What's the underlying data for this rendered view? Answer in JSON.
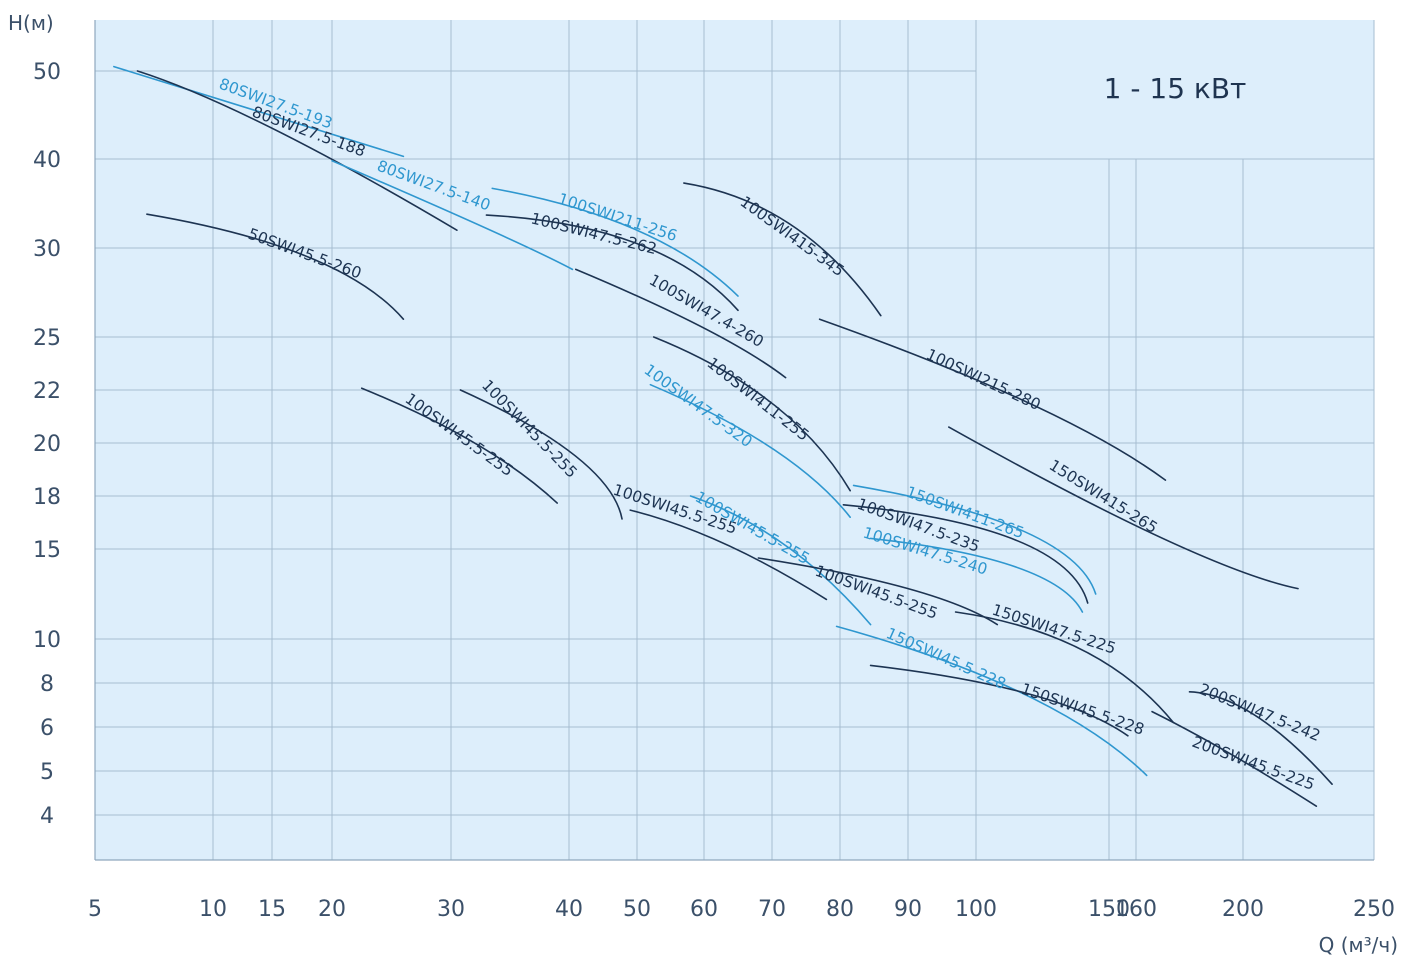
{
  "chart_data": {
    "type": "line",
    "title": "1 - 15 кВт",
    "ylabel": "H(м)",
    "xlabel": "Q (м³/ч)",
    "grid": true,
    "x_ticks": [
      "5",
      "10",
      "15",
      "20",
      "30",
      "40",
      "50",
      "60",
      "70",
      "80",
      "90",
      "100",
      "150",
      "160",
      "200",
      "250"
    ],
    "y_ticks": [
      "50",
      "40",
      "30",
      "25",
      "22",
      "20",
      "18",
      "15",
      "10",
      "8",
      "6",
      "5",
      "4"
    ],
    "colors": {
      "background": "#ddeefb",
      "grid": "#a6bdd0",
      "dark_curve": "#1d3452",
      "light_curve": "#2f97cf",
      "text": "#3b5069"
    },
    "series": [
      {
        "name": "80SWI27.5-193",
        "color": "light",
        "x": [
          5.8,
          26
        ],
        "y": [
          50.5,
          40.3
        ]
      },
      {
        "name": "80SWI27.5-188",
        "color": "dark",
        "x": [
          6.8,
          15,
          30.5
        ],
        "y": [
          50,
          43.5,
          32
        ]
      },
      {
        "name": "80SWI27.5-140",
        "color": "light",
        "x": [
          20,
          33,
          40.5
        ],
        "y": [
          39.8,
          32.2,
          28.8
        ]
      },
      {
        "name": "50SWI45.5-260",
        "color": "dark",
        "x": [
          7.2,
          18,
          26
        ],
        "y": [
          33.8,
          29.5,
          26
        ]
      },
      {
        "name": "100SWI211-256",
        "color": "light",
        "x": [
          33.5,
          50,
          65
        ],
        "y": [
          36.7,
          32,
          27.3
        ]
      },
      {
        "name": "100SWI47.5-262",
        "color": "dark",
        "x": [
          33,
          50,
          65
        ],
        "y": [
          33.7,
          30.5,
          26.5
        ]
      },
      {
        "name": "100SWI415-345",
        "color": "dark",
        "x": [
          57,
          73,
          86
        ],
        "y": [
          37.3,
          32.5,
          26.2
        ]
      },
      {
        "name": "100SWI47.4-260",
        "color": "dark",
        "x": [
          41,
          60,
          72
        ],
        "y": [
          28.8,
          25.5,
          22.7
        ]
      },
      {
        "name": "100SWI215-280",
        "color": "dark",
        "x": [
          77,
          120,
          171
        ],
        "y": [
          26,
          21.5,
          18.6
        ]
      },
      {
        "name": "100SWI411-255",
        "color": "dark",
        "x": [
          52.5,
          70,
          81.5
        ],
        "y": [
          25,
          21.5,
          18.2
        ]
      },
      {
        "name": "100SWI47.5-320",
        "color": "light",
        "x": [
          52,
          70,
          81.5
        ],
        "y": [
          22.3,
          19.8,
          16.8
        ]
      },
      {
        "name": "150SWI415-265",
        "color": "dark",
        "x": [
          96,
          170,
          221
        ],
        "y": [
          20.6,
          15.6,
          12.8
        ]
      },
      {
        "name": "100SWI45.5-255",
        "color": "dark",
        "x": [
          22.5,
          32,
          39
        ],
        "y": [
          22.1,
          20,
          17.6
        ]
      },
      {
        "name": "100SWI45.5-255",
        "color": "dark",
        "x": [
          30.8,
          41,
          47.8
        ],
        "y": [
          22,
          19.5,
          16.7
        ]
      },
      {
        "name": "100SWI45.5-255",
        "color": "dark",
        "x": [
          49,
          63,
          78
        ],
        "y": [
          17.2,
          15.3,
          12.2
        ]
      },
      {
        "name": "100SWI45.5-255",
        "color": "light",
        "x": [
          58,
          72,
          84.5
        ],
        "y": [
          18,
          15.2,
          10.8
        ]
      },
      {
        "name": "100SWI45.5-255",
        "color": "dark",
        "x": [
          68,
          90,
          108
        ],
        "y": [
          14.5,
          12.8,
          10.8
        ]
      },
      {
        "name": "150SWI411-265",
        "color": "light",
        "x": [
          82,
          118,
          145
        ],
        "y": [
          18.4,
          16,
          12.5
        ]
      },
      {
        "name": "100SWI47.5-235",
        "color": "dark",
        "x": [
          80.5,
          115,
          142
        ],
        "y": [
          17.5,
          15.5,
          12
        ]
      },
      {
        "name": "100SWI47.5-240",
        "color": "light",
        "x": [
          84.5,
          115,
          140
        ],
        "y": [
          15.6,
          14,
          11.5
        ]
      },
      {
        "name": "150SWI47.5-225",
        "color": "dark",
        "x": [
          97,
          140,
          174
        ],
        "y": [
          11.5,
          9.5,
          6.2
        ]
      },
      {
        "name": "150SWI45.5-228",
        "color": "light",
        "x": [
          79.5,
          118,
          164
        ],
        "y": [
          10.7,
          7.5,
          4.9
        ]
      },
      {
        "name": "150SWI45.5-228",
        "color": "dark",
        "x": [
          84.5,
          120,
          157
        ],
        "y": [
          8.8,
          7.5,
          5.8
        ]
      },
      {
        "name": "200SWI47.5-242",
        "color": "dark",
        "x": [
          180,
          205,
          234
        ],
        "y": [
          7.6,
          6.5,
          4.7
        ]
      },
      {
        "name": "200SWI45.5-225",
        "color": "dark",
        "x": [
          166,
          195,
          228
        ],
        "y": [
          6.7,
          5.4,
          4.2
        ]
      }
    ],
    "labels": [
      {
        "text": "80SWI27.5-193",
        "color": "light"
      },
      {
        "text": "80SWI27.5-188",
        "color": "dark"
      },
      {
        "text": "80SWI27.5-140",
        "color": "light"
      },
      {
        "text": "50SWI45.5-260",
        "color": "dark"
      },
      {
        "text": "100SWI211-256",
        "color": "light"
      },
      {
        "text": "100SWI47.5-262",
        "color": "dark"
      },
      {
        "text": "100SWI415-345",
        "color": "dark"
      },
      {
        "text": "100SWI47.4-260",
        "color": "dark"
      },
      {
        "text": "100SWI215-280",
        "color": "dark"
      },
      {
        "text": "100SWI411-255",
        "color": "dark"
      },
      {
        "text": "100SWI47.5-320",
        "color": "light"
      },
      {
        "text": "150SWI415-265",
        "color": "dark"
      },
      {
        "text": "100SWI45.5-255",
        "color": "dark"
      },
      {
        "text": "100SWI45.5-255",
        "color": "dark"
      },
      {
        "text": "100SWI45.5-255",
        "color": "dark"
      },
      {
        "text": "100SWI45.5-255",
        "color": "light"
      },
      {
        "text": "100SWI45.5-255",
        "color": "dark"
      },
      {
        "text": "150SWI411-265",
        "color": "light"
      },
      {
        "text": "100SWI47.5-235",
        "color": "dark"
      },
      {
        "text": "100SWI47.5-240",
        "color": "light"
      },
      {
        "text": "150SWI47.5-225",
        "color": "dark"
      },
      {
        "text": "150SWI45.5-228",
        "color": "light"
      },
      {
        "text": "150SWI45.5-228",
        "color": "dark"
      },
      {
        "text": "200SWI47.5-242",
        "color": "dark"
      },
      {
        "text": "200SWI45.5-225",
        "color": "dark"
      }
    ]
  }
}
